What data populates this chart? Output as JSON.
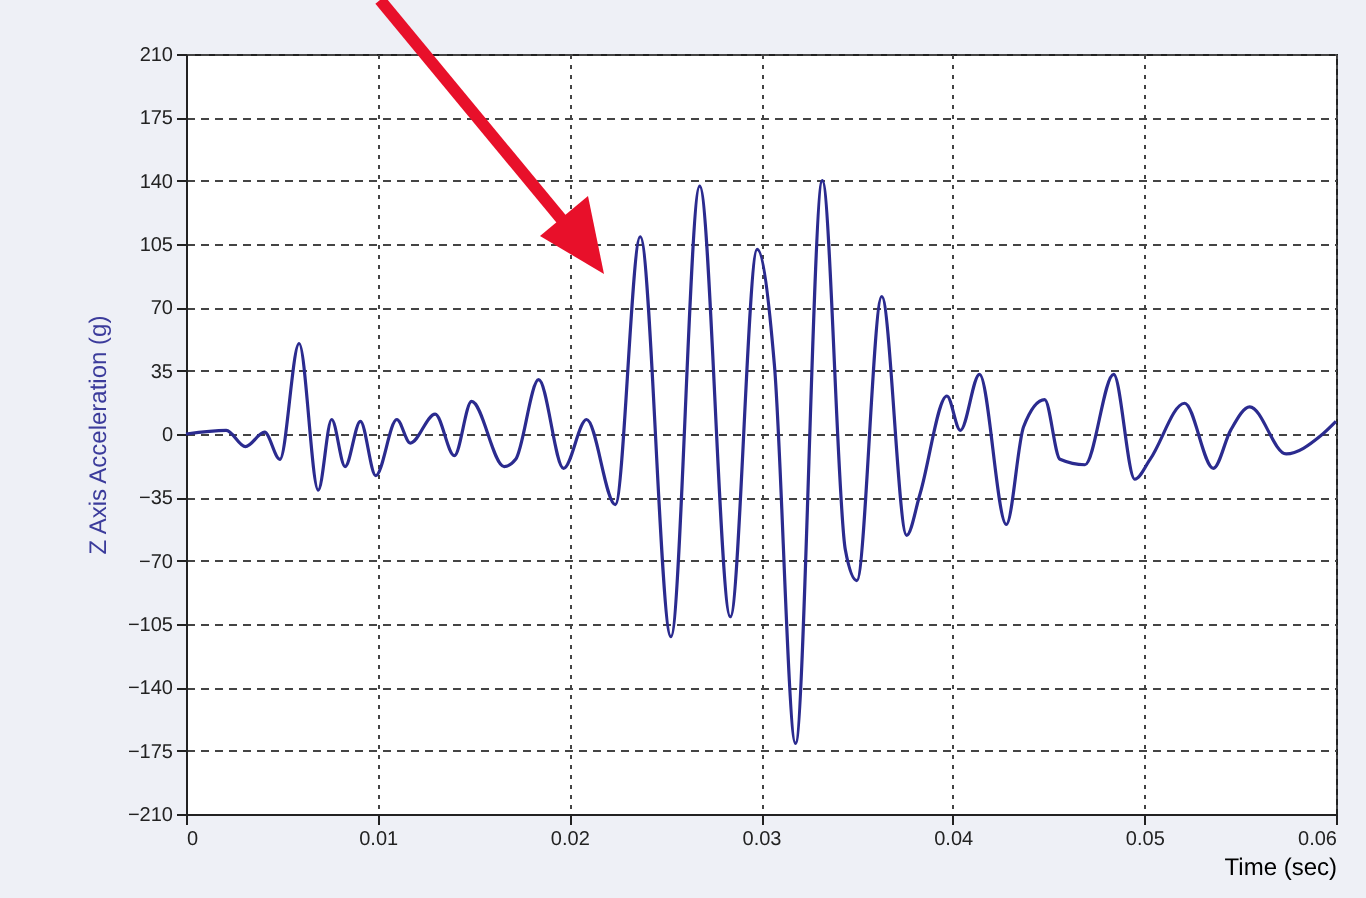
{
  "chart_data": {
    "type": "line",
    "xlabel": "Time (sec)",
    "ylabel": "Z Axis Acceleration (g)",
    "series": [
      {
        "color": "#2b2b8f",
        "x": [
          0,
          0.0021,
          0.0031,
          0.0041,
          0.0049,
          0.0059,
          0.0069,
          0.0076,
          0.0083,
          0.0091,
          0.0099,
          0.011,
          0.0117,
          0.013,
          0.014,
          0.0149,
          0.0166,
          0.0172,
          0.0184,
          0.0197,
          0.0209,
          0.0224,
          0.0237,
          0.0253,
          0.0268,
          0.0284,
          0.0298,
          0.0307,
          0.0318,
          0.0332,
          0.0344,
          0.035,
          0.0363,
          0.0376,
          0.0383,
          0.0397,
          0.0404,
          0.0414,
          0.0428,
          0.0437,
          0.0448,
          0.0456,
          0.0469,
          0.0484,
          0.0495,
          0.0503,
          0.0521,
          0.0536,
          0.0545,
          0.0555,
          0.0574,
          0.0592,
          0.06
        ],
        "values": [
          0,
          2,
          -7,
          1,
          -14,
          50,
          -31,
          8,
          -18,
          7,
          -23,
          8,
          -5,
          11,
          -12,
          18,
          -18,
          -14,
          30,
          -19,
          8,
          -39,
          109,
          -112,
          137,
          -101,
          102,
          38,
          -171,
          140,
          -64,
          -81,
          76,
          -56,
          -33,
          21,
          2,
          33,
          -50,
          4,
          19,
          -14,
          -17,
          33,
          -25,
          -14,
          17,
          -19,
          2,
          15,
          -11,
          -1,
          7
        ]
      }
    ],
    "xlim": [
      0,
      0.06
    ],
    "xticks": [
      0,
      0.01,
      0.02,
      0.03,
      0.04,
      0.05,
      0.06
    ],
    "ylim": [
      -210,
      210
    ],
    "yticks": [
      -210,
      -175,
      -140,
      -105,
      -70,
      -35,
      0,
      35,
      70,
      105,
      140,
      175,
      210
    ],
    "grid": true,
    "line_style": "solid",
    "marker": "none"
  }
}
